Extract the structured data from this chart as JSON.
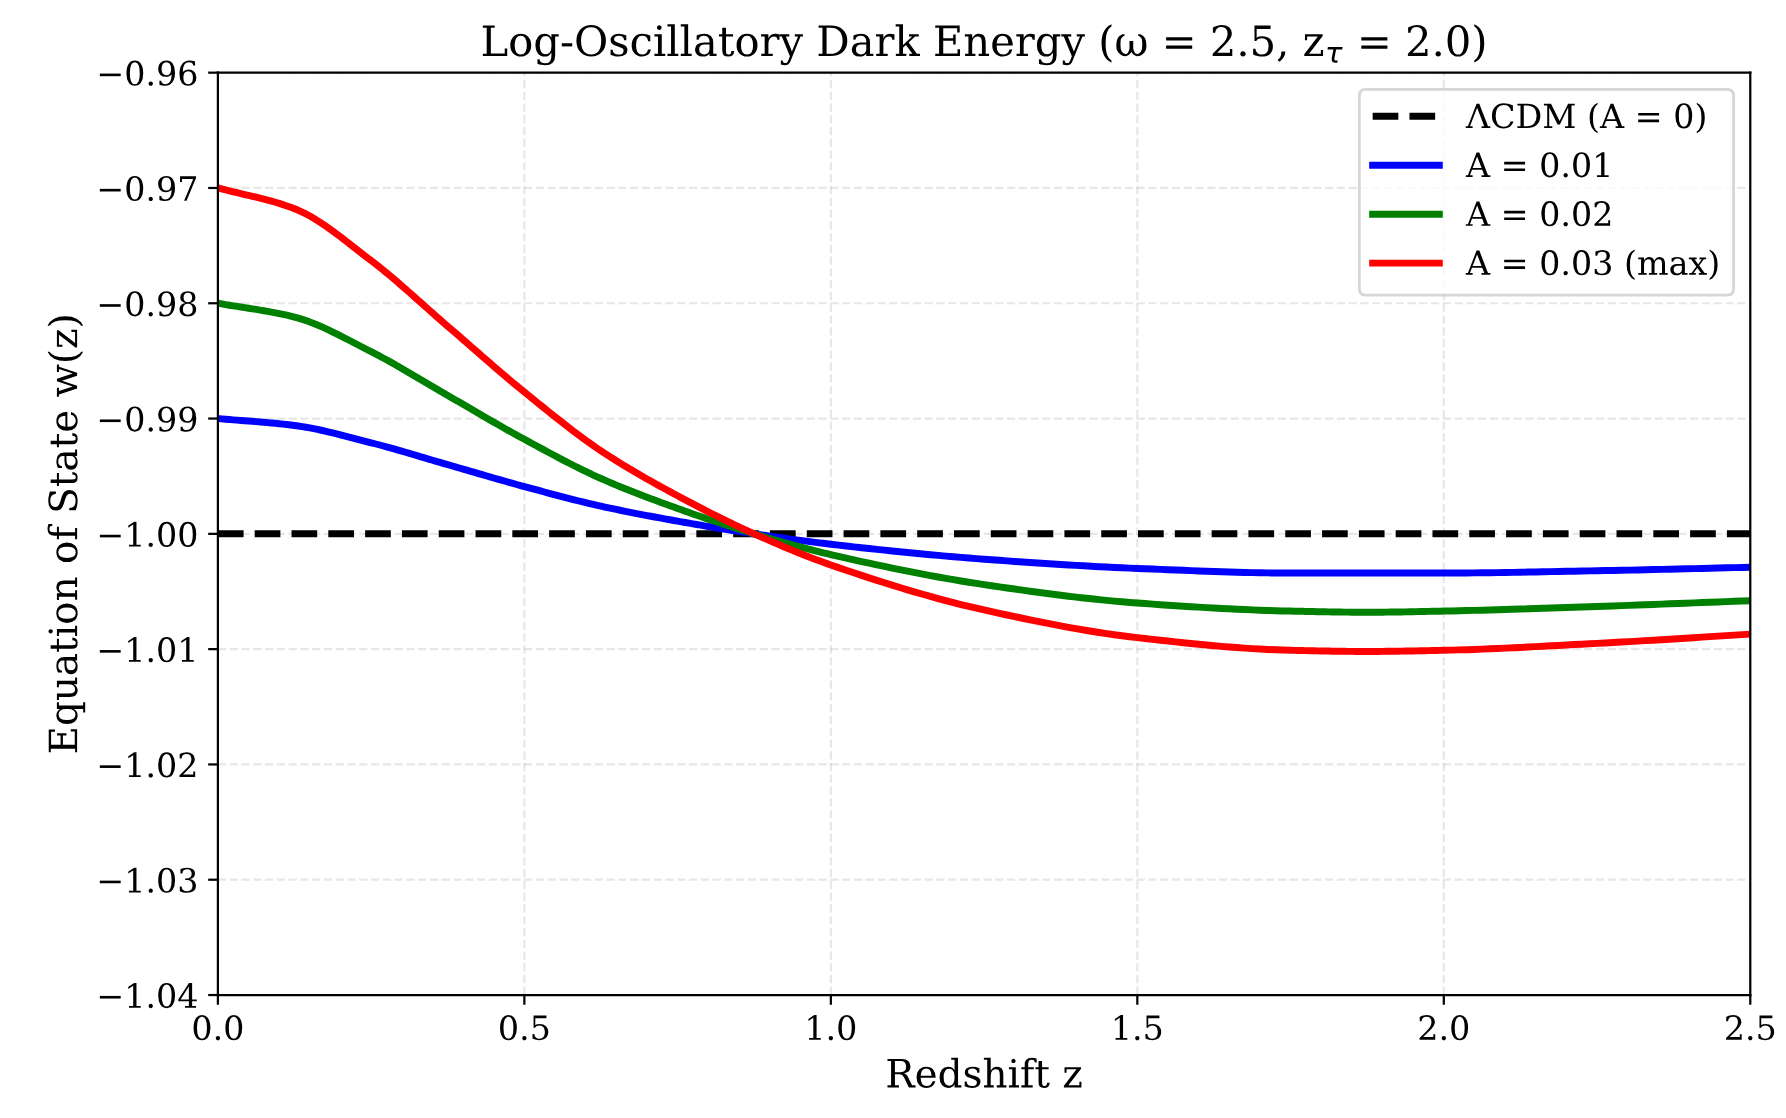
{
  "chart_data": {
    "type": "line",
    "title": "Log-Oscillatory Dark Energy (ω = 2.5, z$_{τ}$ = 2.0)",
    "xlabel": "Redshift z",
    "ylabel": "Equation of State w(z)",
    "x": [
      0,
      0.125,
      0.25,
      0.375,
      0.5,
      0.625,
      0.75,
      0.875,
      1.0,
      1.25,
      1.5,
      1.75,
      1.875,
      2.0,
      2.25,
      2.5
    ],
    "series": [
      {
        "name": "ΛCDM (A = 0)",
        "color": "#000000",
        "line_style": "dashed",
        "x": [
          0,
          2.5
        ],
        "values": [
          -1.0,
          -1.0
        ]
      },
      {
        "name": "A = 0.01",
        "color": "#0000ff",
        "values": [
          -0.99,
          -0.9906,
          -0.9921,
          -0.994,
          -0.9959,
          -0.9976,
          -0.9989,
          -1.0,
          -1.0009,
          -1.0022,
          -1.003,
          -1.0034,
          -1.0034,
          -1.0034,
          -1.0032,
          -1.0029
        ]
      },
      {
        "name": "A = 0.02",
        "color": "#008000",
        "values": [
          -0.98,
          -0.9812,
          -0.9842,
          -0.988,
          -0.9918,
          -0.9952,
          -0.9978,
          -1.0,
          -1.0018,
          -1.0044,
          -1.006,
          -1.0067,
          -1.0068,
          -1.0067,
          -1.0063,
          -1.0058
        ]
      },
      {
        "name": "A = 0.03 (max)",
        "color": "#ff0000",
        "values": [
          -0.97,
          -0.9718,
          -0.9763,
          -0.982,
          -0.9877,
          -0.9928,
          -0.9967,
          -1.0,
          -1.0027,
          -1.0066,
          -1.009,
          -1.0101,
          -1.0102,
          -1.0101,
          -1.0095,
          -1.0087
        ]
      }
    ],
    "xlim": [
      0,
      2.5
    ],
    "ylim": [
      -1.04,
      -0.96
    ],
    "xticks": [
      {
        "value": 0,
        "label": "0.0"
      },
      0.5,
      {
        "value": 1,
        "label": "1.0"
      },
      1.5,
      {
        "value": 2,
        "label": "2.0"
      },
      2.5
    ],
    "yticks": [
      -1.04,
      -1.03,
      -1.02,
      -1.01,
      {
        "value": -1,
        "label": "−1.00"
      },
      -0.99,
      -0.98,
      -0.97,
      -0.96
    ],
    "grid": true,
    "legend": "top right",
    "line_style": "solid",
    "marker": "none"
  }
}
